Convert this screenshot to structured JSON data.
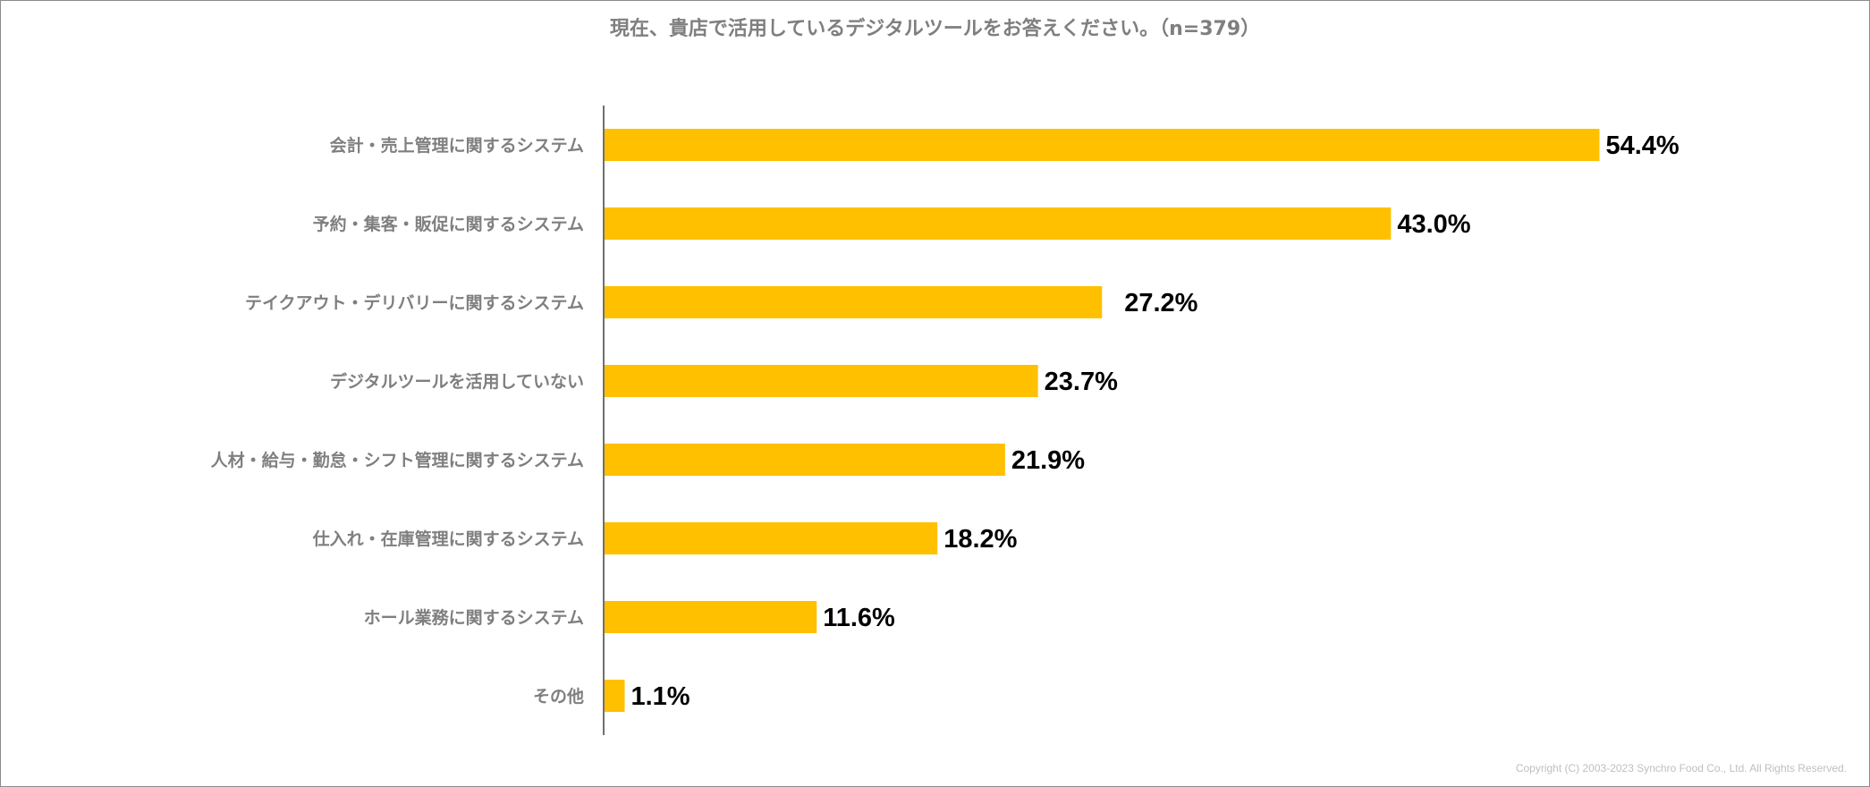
{
  "chart_data": {
    "type": "bar",
    "orientation": "horizontal",
    "title": "現在、貴店で活用しているデジタルツールをお答えください。（n=379）",
    "categories": [
      "会計・売上管理に関するシステム",
      "予約・集客・販促に関するシステム",
      "テイクアウト・デリバリーに関するシステム",
      "デジタルツールを活用していない",
      "人材・給与・勤怠・シフト管理に関するシステム",
      "仕入れ・在庫管理に関するシステム",
      "ホール業務に関するシステム",
      "その他"
    ],
    "values": [
      54.4,
      43.0,
      27.2,
      23.7,
      21.9,
      18.2,
      11.6,
      1.1
    ],
    "value_labels": [
      "54.4%",
      "43.0%",
      "27.2%",
      "23.7%",
      "21.9%",
      "18.2%",
      "11.6%",
      "1.1%"
    ],
    "unit": "%",
    "xlim": [
      0,
      60
    ],
    "grid": false,
    "bar_color": "#ffc000",
    "label_color": "#7f7f7f",
    "value_color": "#000000"
  },
  "footer": {
    "copyright": "Copyright (C) 2003-2023   Synchro Food Co., Ltd. All Rights Reserved."
  }
}
